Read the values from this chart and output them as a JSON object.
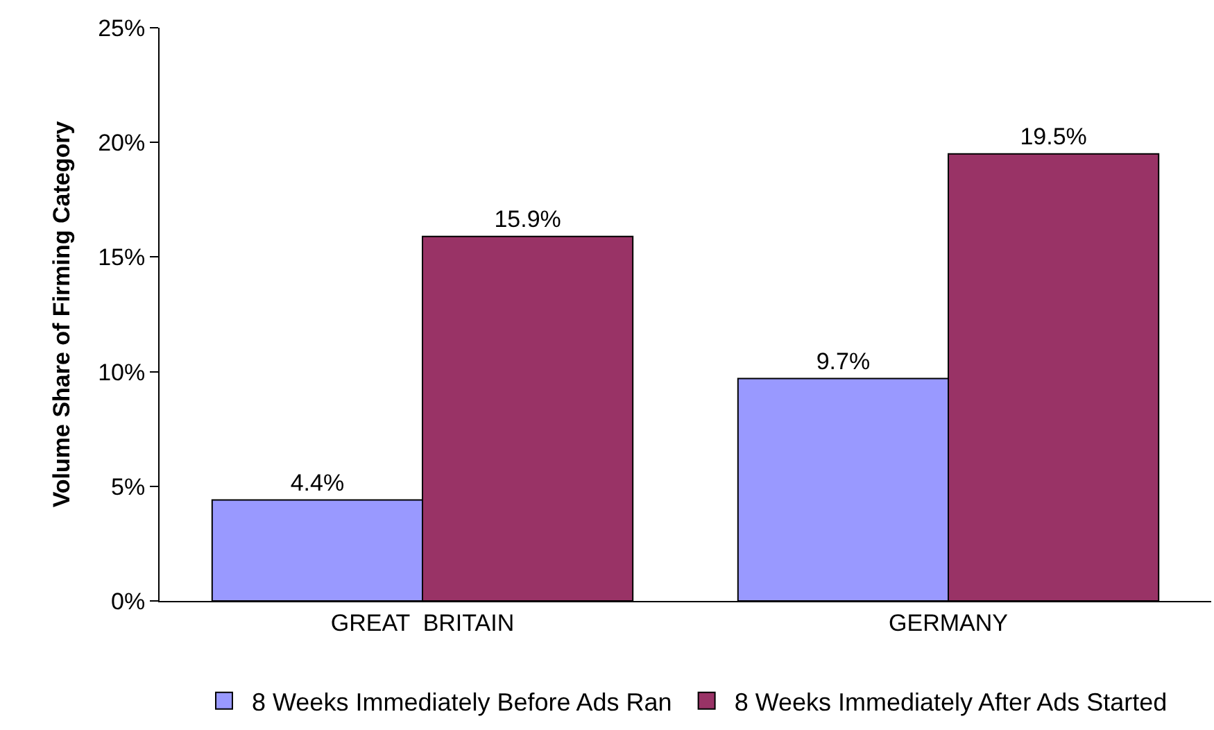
{
  "chart_data": {
    "type": "bar",
    "ylabel": "Volume Share of Firming Category",
    "categories": [
      "GREAT  BRITAIN",
      "GERMANY"
    ],
    "series": [
      {
        "name": "8 Weeks Immediately Before Ads Ran",
        "color": "#9999ff",
        "values": [
          4.4,
          9.7
        ],
        "value_labels": [
          "4.4%",
          "9.7%"
        ]
      },
      {
        "name": "8 Weeks Immediately After Ads Started",
        "color": "#993366",
        "values": [
          15.9,
          19.5
        ],
        "value_labels": [
          "15.9%",
          "19.5%"
        ]
      }
    ],
    "ylim": [
      0,
      25
    ],
    "yticks": [
      {
        "value": 0,
        "label": "0%"
      },
      {
        "value": 5,
        "label": "5%"
      },
      {
        "value": 10,
        "label": "10%"
      },
      {
        "value": 15,
        "label": "15%"
      },
      {
        "value": 20,
        "label": "20%"
      },
      {
        "value": 25,
        "label": "25%"
      }
    ],
    "legend": "bottom"
  }
}
